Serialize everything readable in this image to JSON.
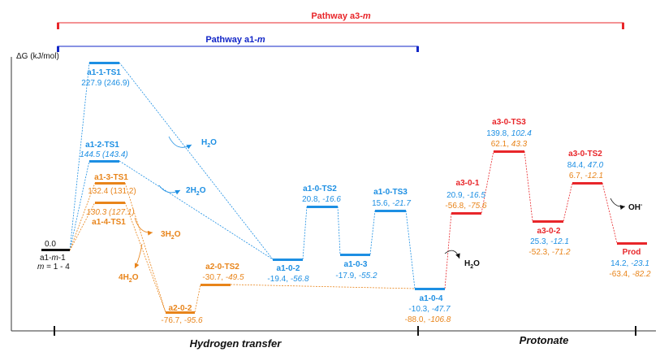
{
  "axis": {
    "ylabel": "ΔG (kJ/mol)",
    "xlabel_left": "Hydrogen transfer",
    "xlabel_right": "Protonate"
  },
  "pathways": [
    {
      "id": "a3",
      "label_prefix": "Pathway a3-",
      "label_italic": "m",
      "color": "#e8262a"
    },
    {
      "id": "a1",
      "label_prefix": "Pathway a1-",
      "label_italic": "m",
      "color": "#1226c7"
    }
  ],
  "colors": {
    "blue": "#1d8fe3",
    "orange": "#e8841a",
    "red": "#e8262a",
    "black": "#111111"
  },
  "start": {
    "value": "0.0",
    "name_prefix": "a1-",
    "name_italic": "m",
    "name_suffix": "-1",
    "note_italic": "m",
    "note_rest": " = 1 - 4"
  },
  "states": {
    "a1_1_ts1": {
      "name": "a1-1-TS1",
      "values": "227.9 (246.9)"
    },
    "a1_2_ts1": {
      "name": "a1-2-TS1",
      "values": "144.5 (143.4)"
    },
    "a1_3_ts1": {
      "name": "a1-3-TS1",
      "values": "132.4 (131.2)"
    },
    "a1_4_ts1": {
      "name": "a1-4-TS1",
      "values": "130.3 (127.1)"
    },
    "a2_0_2": {
      "name": "a2-0-2",
      "v1": "-76.7",
      "v2": "-95.6"
    },
    "a2_0_ts2": {
      "name": "a2-0-TS2",
      "v1": "-30.7",
      "v2": "-49.5"
    },
    "a1_0_2": {
      "name": "a1-0-2",
      "v1": "-19.4",
      "v2": "-56.8"
    },
    "a1_0_ts2": {
      "name": "a1-0-TS2",
      "v1": "20.8",
      "v2": "-16.6"
    },
    "a1_0_3": {
      "name": "a1-0-3",
      "v1": "-17.9",
      "v2": "-55.2"
    },
    "a1_0_ts3": {
      "name": "a1-0-TS3",
      "v1": "15.6",
      "v2": "-21.7"
    },
    "a1_0_4": {
      "name": "a1-0-4",
      "v1": "-10.3",
      "v2": "-47.7",
      "v3": "-88.0",
      "v4": "-106.8"
    },
    "a3_0_1": {
      "name": "a3-0-1",
      "v1": "20.9",
      "v2": "-16.5",
      "v3": "-56.8",
      "v4": "-75.6"
    },
    "a3_0_ts3": {
      "name": "a3-0-TS3",
      "v1": "139.8",
      "v2": "102.4",
      "v3": "62.1",
      "v4": "43.3"
    },
    "a3_0_2": {
      "name": "a3-0-2",
      "v1": "25.3",
      "v2": "-12.1",
      "v3": "-52.3",
      "v4": "-71.2"
    },
    "a3_0_ts2": {
      "name": "a3-0-TS2",
      "v1": "84.4",
      "v2": "47.0",
      "v3": "6.7",
      "v4": "-12.1"
    },
    "prod": {
      "name": "Prod",
      "v1": "14.2",
      "v2": "-23.1",
      "v3": "-63.4",
      "v4": "-82.2"
    }
  },
  "species": {
    "h2o_1": {
      "base": "H",
      "sub": "2",
      "tail": "O"
    },
    "h2o_2": {
      "coef": "2",
      "base": "H",
      "sub": "2",
      "tail": "O"
    },
    "h2o_3": {
      "coef": "3",
      "base": "H",
      "sub": "2",
      "tail": "O"
    },
    "h2o_4": {
      "coef": "4",
      "base": "H",
      "sub": "2",
      "tail": "O"
    },
    "h2o_add": {
      "base": "H",
      "sub": "2",
      "tail": "O"
    },
    "oh": {
      "base": "OH",
      "sup": "-"
    }
  }
}
